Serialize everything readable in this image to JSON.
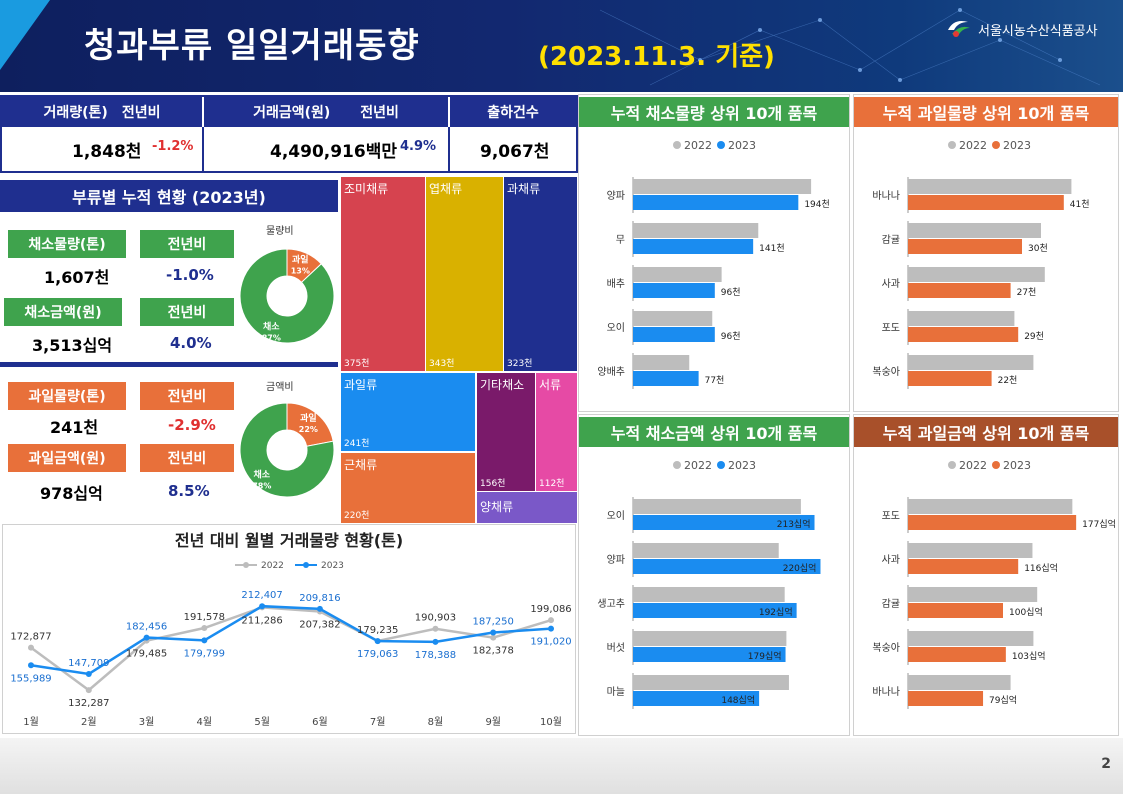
{
  "header": {
    "title": "청과부류 일일거래동향",
    "date": "(2023.11.3. 기준)",
    "org": "서울시농수산식품공사"
  },
  "page_number": "2",
  "summary": {
    "volume_label": "거래량(톤)",
    "yoy_label": "전년비",
    "amount_label": "거래금액(원)",
    "yoy_label2": "전년비",
    "count_label": "출하건수",
    "volume_value": "1,848천",
    "volume_yoy": "-1.2%",
    "amount_value": "4,490,916백만",
    "amount_yoy": "4.9%",
    "count_value": "9,067천"
  },
  "category": {
    "title": "부류별 누적 현황 (2023년)",
    "veg_vol_label": "채소물량(톤)",
    "veg_vol_yoy_label": "전년비",
    "veg_vol_value": "1,607천",
    "veg_vol_yoy": "-1.0%",
    "veg_amt_label": "채소금액(원)",
    "veg_amt_yoy_label": "전년비",
    "veg_amt_value": "3,513십억",
    "veg_amt_yoy": "4.0%",
    "fruit_vol_label": "과일물량(톤)",
    "fruit_vol_yoy_label": "전년비",
    "fruit_vol_value": "241천",
    "fruit_vol_yoy": "-2.9%",
    "fruit_amt_label": "과일금액(원)",
    "fruit_amt_yoy_label": "전년비",
    "fruit_amt_value": "978십억",
    "fruit_amt_yoy": "8.5%",
    "donut1_title": "물량비",
    "donut2_title": "금액비"
  },
  "colors": {
    "green": "#3fa34d",
    "orange": "#e8703a",
    "navy": "#1f2f8f",
    "blue": "#1a8cf0",
    "gray": "#bdbdbd",
    "red_text": "#e03030"
  },
  "chart_data": [
    {
      "id": "donut-volume",
      "type": "pie",
      "title": "물량비",
      "slices": [
        {
          "name": "과일",
          "value": 13,
          "label": "13%"
        },
        {
          "name": "채소",
          "value": 87,
          "label": "87%"
        }
      ]
    },
    {
      "id": "donut-amount",
      "type": "pie",
      "title": "금액비",
      "slices": [
        {
          "name": "과일",
          "value": 22,
          "label": "22%"
        },
        {
          "name": "채소",
          "value": 78,
          "label": "78%"
        }
      ]
    },
    {
      "id": "treemap",
      "type": "treemap",
      "items": [
        {
          "name": "조미채류",
          "value": "375천"
        },
        {
          "name": "엽채류",
          "value": "343천"
        },
        {
          "name": "과채류",
          "value": "323천"
        },
        {
          "name": "과일류",
          "value": "241천"
        },
        {
          "name": "근채류",
          "value": "220천"
        },
        {
          "name": "기타채소",
          "value": "156천"
        },
        {
          "name": "서류",
          "value": "112천"
        },
        {
          "name": "양채류",
          "value": ""
        }
      ]
    },
    {
      "id": "monthly-line",
      "type": "line",
      "title": "전년 대비 월별 거래물량 현황(톤)",
      "categories": [
        "1월",
        "2월",
        "3월",
        "4월",
        "5월",
        "6월",
        "7월",
        "8월",
        "9월",
        "10월"
      ],
      "series": [
        {
          "name": "2022",
          "values": [
            172877,
            132287,
            179485,
            191578,
            211286,
            207382,
            179235,
            190903,
            182378,
            199086
          ],
          "labels": [
            "172,877",
            "132,287",
            "179,485",
            "191,578",
            "211,286",
            "207,382",
            "179,235",
            "190,903",
            "182,378",
            "199,086"
          ]
        },
        {
          "name": "2023",
          "values": [
            155989,
            147709,
            182456,
            179799,
            212407,
            209816,
            179063,
            178388,
            187250,
            191020
          ],
          "labels": [
            "155,989",
            "147,709",
            "182,456",
            "179,799",
            "212,407",
            "209,816",
            "179,063",
            "178,388",
            "187,250",
            "191,020"
          ]
        }
      ],
      "ylim": [
        120000,
        225000
      ]
    },
    {
      "id": "veg-volume-top",
      "type": "bar",
      "title": "누적 채소물량 상위 10개 품목",
      "legend": [
        "2022",
        "2023"
      ],
      "categories": [
        "양파",
        "무",
        "배추",
        "오이",
        "양배추"
      ],
      "series": [
        {
          "name": "2022",
          "values": [
            209,
            147,
            104,
            93,
            66
          ]
        },
        {
          "name": "2023",
          "values": [
            194,
            141,
            96,
            96,
            77
          ]
        }
      ],
      "labels": [
        "194천",
        "141천",
        "96천",
        "96천",
        "77천"
      ],
      "xlim": [
        0,
        230
      ]
    },
    {
      "id": "fruit-volume-top",
      "type": "bar",
      "title": "누적 과일물량 상위 10개 품목",
      "legend": [
        "2022",
        "2023"
      ],
      "categories": [
        "바나나",
        "감귤",
        "사과",
        "포도",
        "복숭아"
      ],
      "series": [
        {
          "name": "2022",
          "values": [
            43,
            35,
            36,
            28,
            33
          ]
        },
        {
          "name": "2023",
          "values": [
            41,
            30,
            27,
            29,
            22
          ]
        }
      ],
      "labels": [
        "41천",
        "30천",
        "27천",
        "29천",
        "22천"
      ],
      "xlim": [
        0,
        50
      ]
    },
    {
      "id": "veg-amount-top",
      "type": "bar",
      "title": "누적 채소금액 상위 10개 품목",
      "legend": [
        "2022",
        "2023"
      ],
      "categories": [
        "오이",
        "양파",
        "생고추",
        "버섯",
        "마늘"
      ],
      "series": [
        {
          "name": "2022",
          "values": [
            197,
            171,
            178,
            180,
            183
          ]
        },
        {
          "name": "2023",
          "values": [
            213,
            220,
            192,
            179,
            148
          ]
        }
      ],
      "labels": [
        "213십억",
        "220십억",
        "192십억",
        "179십억",
        "148십억"
      ],
      "xlim": [
        0,
        230
      ]
    },
    {
      "id": "fruit-amount-top",
      "type": "bar",
      "title": "누적 과일금액 상위 10개 품목",
      "legend": [
        "2022",
        "2023"
      ],
      "categories": [
        "포도",
        "사과",
        "감귤",
        "복숭아",
        "바나나"
      ],
      "series": [
        {
          "name": "2022",
          "values": [
            173,
            131,
            136,
            132,
            108
          ]
        },
        {
          "name": "2023",
          "values": [
            177,
            116,
            100,
            103,
            79
          ]
        }
      ],
      "labels": [
        "177십억",
        "116십억",
        "100십억",
        "103십억",
        "79십억"
      ],
      "xlim": [
        0,
        200
      ]
    }
  ]
}
